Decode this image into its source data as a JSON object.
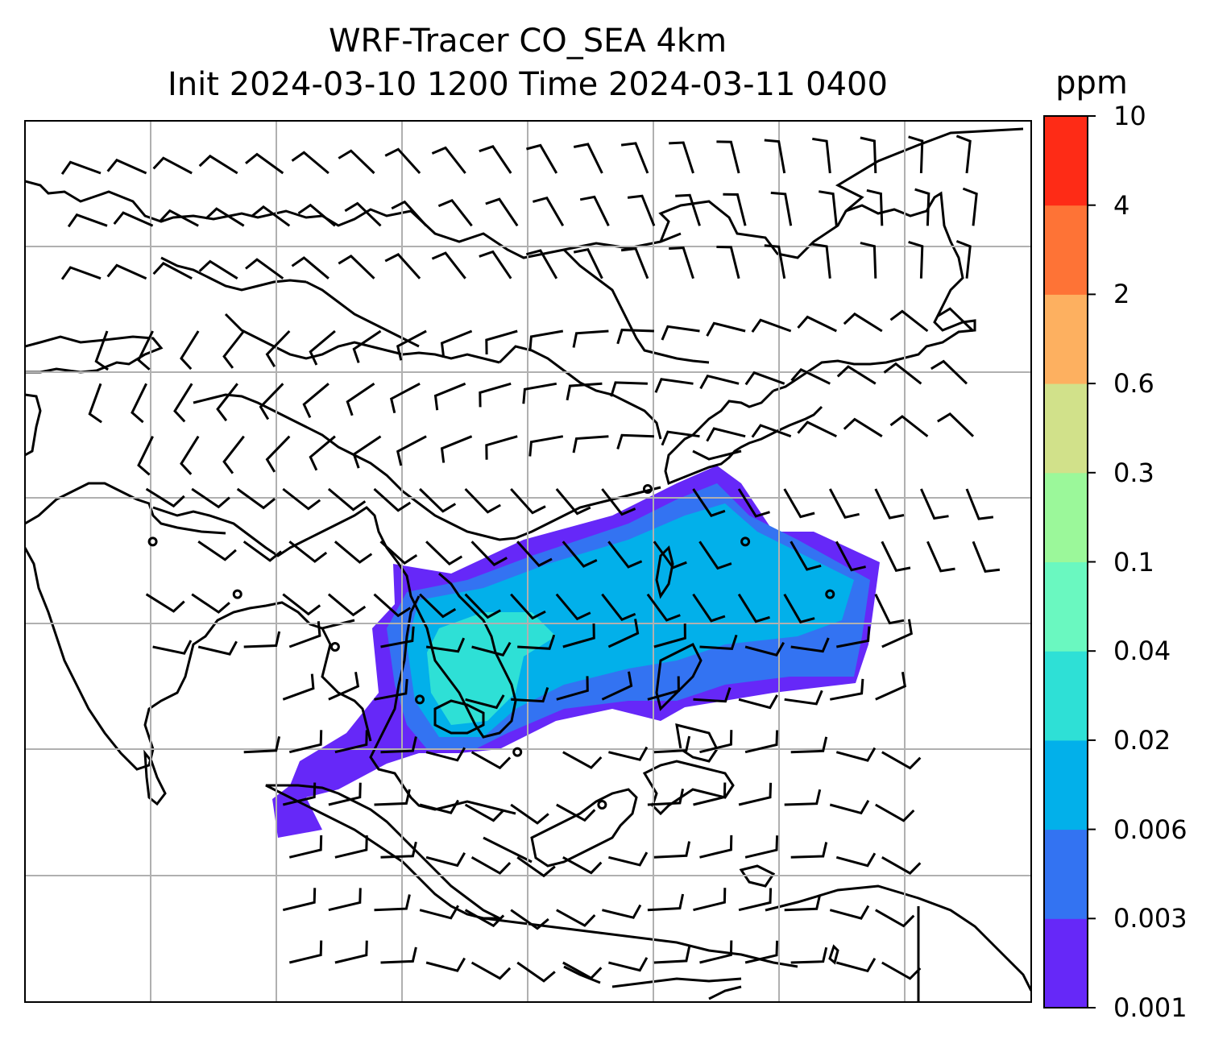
{
  "title": {
    "line1": "WRF-Tracer CO_SEA 4km",
    "line2": "Init 2024-03-10 1200 Time 2024-03-11 0400"
  },
  "colorbar": {
    "unit": "ppm",
    "levels": [
      "0.001",
      "0.003",
      "0.006",
      "0.02",
      "0.04",
      "0.1",
      "0.3",
      "0.6",
      "2",
      "4",
      "10"
    ],
    "colors": [
      "#6628f8",
      "#3373f2",
      "#02b0ea",
      "#2ee0d6",
      "#6af8c0",
      "#9bf89a",
      "#d1e18a",
      "#fdb060",
      "#fe7336",
      "#fe2b16"
    ]
  },
  "map": {
    "grid": true,
    "field": "CO tracer concentration",
    "overlay": "wind barbs",
    "plume_colors": {
      "outer": "#6628f8",
      "mid": "#3373f2",
      "core": "#02b0ea",
      "hot": "#2ee0d6"
    }
  }
}
